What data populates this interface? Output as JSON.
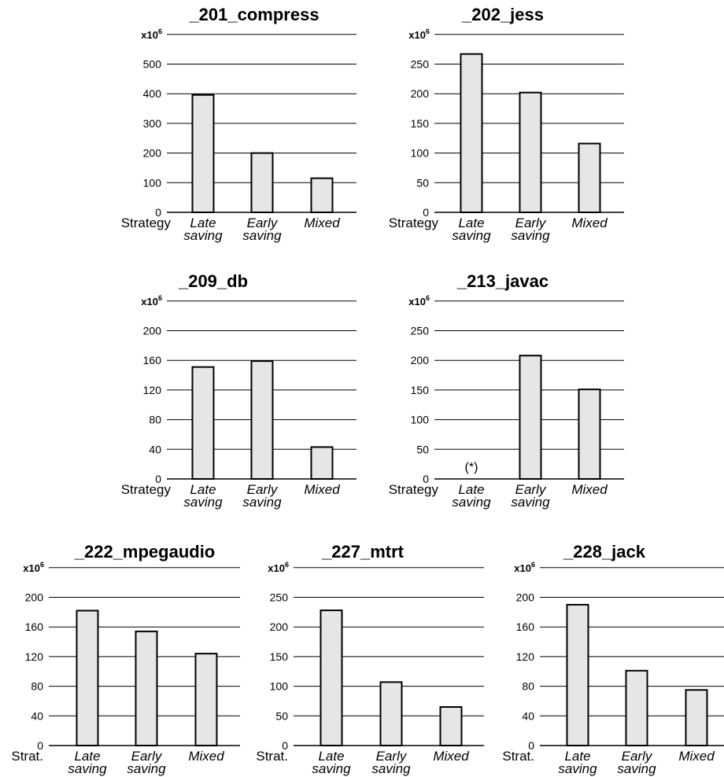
{
  "chart_data": [
    {
      "type": "bar",
      "title": "_201_compress",
      "axis_multiplier": "x10",
      "axis_multiplier_exp": "6",
      "strategy_label": "Strategy",
      "categories": [
        [
          "Late",
          "saving"
        ],
        [
          "Early",
          "saving"
        ],
        [
          "Mixed"
        ]
      ],
      "values": [
        396,
        200,
        115
      ],
      "ylim": [
        0,
        600
      ],
      "yticks": [
        0,
        100,
        200,
        300,
        400,
        500
      ],
      "grid": true,
      "bar_color": "#e6e6e6",
      "note": ""
    },
    {
      "type": "bar",
      "title": "_202_jess",
      "axis_multiplier": "x10",
      "axis_multiplier_exp": "6",
      "strategy_label": "Strategy",
      "categories": [
        [
          "Late",
          "saving"
        ],
        [
          "Early",
          "saving"
        ],
        [
          "Mixed"
        ]
      ],
      "values": [
        267,
        202,
        116
      ],
      "ylim": [
        0,
        300
      ],
      "yticks": [
        0,
        50,
        100,
        150,
        200,
        250
      ],
      "grid": true,
      "bar_color": "#e6e6e6",
      "note": ""
    },
    {
      "type": "bar",
      "title": "_209_db",
      "axis_multiplier": "x10",
      "axis_multiplier_exp": "6",
      "strategy_label": "Strategy",
      "categories": [
        [
          "Late",
          "saving"
        ],
        [
          "Early",
          "saving"
        ],
        [
          "Mixed"
        ]
      ],
      "values": [
        151,
        159,
        43
      ],
      "ylim": [
        0,
        240
      ],
      "yticks": [
        0,
        40,
        80,
        120,
        160,
        200
      ],
      "grid": true,
      "bar_color": "#e6e6e6",
      "note": ""
    },
    {
      "type": "bar",
      "title": "_213_javac",
      "axis_multiplier": "x10",
      "axis_multiplier_exp": "6",
      "strategy_label": "Strategy",
      "categories": [
        [
          "Late",
          "saving"
        ],
        [
          "Early",
          "saving"
        ],
        [
          "Mixed"
        ]
      ],
      "values": [
        null,
        208,
        151
      ],
      "ylim": [
        0,
        300
      ],
      "yticks": [
        0,
        50,
        100,
        150,
        200,
        250
      ],
      "grid": true,
      "bar_color": "#e6e6e6",
      "note": "(*)"
    },
    {
      "type": "bar",
      "title": "_222_mpegaudio",
      "axis_multiplier": "x10",
      "axis_multiplier_exp": "6",
      "strategy_label": "Strat.",
      "categories": [
        [
          "Late",
          "saving"
        ],
        [
          "Early",
          "saving"
        ],
        [
          "Mixed"
        ]
      ],
      "values": [
        182,
        154,
        124
      ],
      "ylim": [
        0,
        240
      ],
      "yticks": [
        0,
        40,
        80,
        120,
        160,
        200
      ],
      "grid": true,
      "bar_color": "#e6e6e6",
      "note": ""
    },
    {
      "type": "bar",
      "title": "_227_mtrt",
      "axis_multiplier": "x10",
      "axis_multiplier_exp": "6",
      "strategy_label": "Strat.",
      "categories": [
        [
          "Late",
          "saving"
        ],
        [
          "Early",
          "saving"
        ],
        [
          "Mixed"
        ]
      ],
      "values": [
        228,
        107,
        65
      ],
      "ylim": [
        0,
        300
      ],
      "yticks": [
        0,
        50,
        100,
        150,
        200,
        250
      ],
      "grid": true,
      "bar_color": "#e6e6e6",
      "note": ""
    },
    {
      "type": "bar",
      "title": "_228_jack",
      "axis_multiplier": "x10",
      "axis_multiplier_exp": "6",
      "strategy_label": "Strat.",
      "categories": [
        [
          "Late",
          "saving"
        ],
        [
          "Early",
          "saving"
        ],
        [
          "Mixed"
        ]
      ],
      "values": [
        190,
        101,
        75
      ],
      "ylim": [
        0,
        240
      ],
      "yticks": [
        0,
        40,
        80,
        120,
        160,
        200
      ],
      "grid": true,
      "bar_color": "#e6e6e6",
      "note": ""
    }
  ]
}
